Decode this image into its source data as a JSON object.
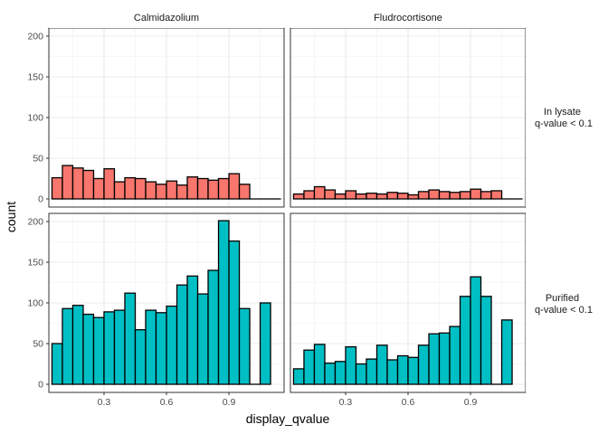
{
  "chart_data": {
    "type": "bar",
    "subtype": "faceted-histogram",
    "xlabel": "display_qvalue",
    "ylabel": "count",
    "columns": [
      "Calmidazolium",
      "Fludrocortisone"
    ],
    "rows": [
      {
        "label": "In lysate\nq-value < 0.1",
        "color": "#F8766D"
      },
      {
        "label": "Purified\nq-value < 0.1",
        "color": "#00BFC4"
      }
    ],
    "xlim": [
      0.035,
      1.165
    ],
    "ylim": [
      -10,
      210
    ],
    "x_ticks": [
      0.3,
      0.6,
      0.9
    ],
    "x_tick_labels": [
      "0.3",
      "0.6",
      "0.9"
    ],
    "y_ticks": [
      0,
      50,
      100,
      150,
      200
    ],
    "y_tick_labels": [
      "0",
      "50",
      "100",
      "150",
      "200"
    ],
    "bin_width": 0.05,
    "bin_centers": [
      0.075,
      0.125,
      0.175,
      0.225,
      0.275,
      0.325,
      0.375,
      0.425,
      0.475,
      0.525,
      0.575,
      0.625,
      0.675,
      0.725,
      0.775,
      0.825,
      0.875,
      0.925,
      0.975,
      1.025,
      1.075,
      1.125
    ],
    "panels": [
      {
        "row": 0,
        "col": 0,
        "values": [
          26,
          41,
          38,
          35,
          25,
          37,
          21,
          26,
          25,
          21,
          18,
          22,
          17,
          27,
          25,
          23,
          25,
          31,
          18,
          0,
          0,
          0
        ]
      },
      {
        "row": 0,
        "col": 1,
        "values": [
          6,
          10,
          15,
          11,
          6,
          10,
          6,
          7,
          6,
          8,
          7,
          5,
          9,
          11,
          9,
          8,
          9,
          12,
          9,
          10,
          0,
          0
        ]
      },
      {
        "row": 1,
        "col": 0,
        "values": [
          50,
          93,
          97,
          86,
          82,
          89,
          91,
          112,
          67,
          91,
          88,
          96,
          122,
          133,
          111,
          140,
          201,
          176,
          93,
          0,
          100,
          0
        ]
      },
      {
        "row": 1,
        "col": 1,
        "values": [
          19,
          42,
          49,
          26,
          28,
          46,
          25,
          31,
          48,
          30,
          35,
          33,
          48,
          62,
          63,
          71,
          108,
          132,
          108,
          0,
          79,
          0
        ]
      }
    ],
    "grid": true,
    "legend": "none"
  }
}
